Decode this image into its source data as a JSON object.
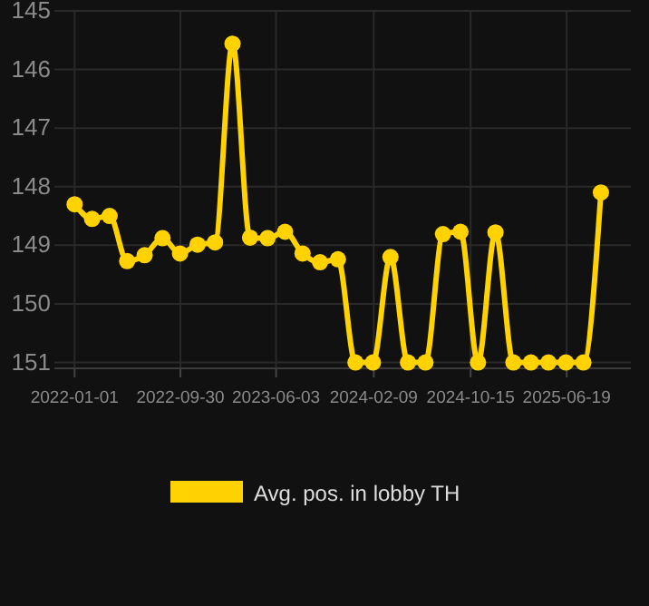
{
  "chart_data": {
    "type": "line",
    "x": [
      "2022-01-01",
      "2022-02-15",
      "2022-04-01",
      "2022-05-16",
      "2022-06-30",
      "2022-08-15",
      "2022-09-29",
      "2022-11-13",
      "2022-12-28",
      "2023-02-11",
      "2023-03-28",
      "2023-05-12",
      "2023-06-26",
      "2023-08-10",
      "2023-09-24",
      "2023-11-09",
      "2023-12-24",
      "2024-02-07",
      "2024-03-23",
      "2024-05-07",
      "2024-06-21",
      "2024-08-05",
      "2024-09-19",
      "2024-11-03",
      "2024-12-18",
      "2025-02-02",
      "2025-03-19",
      "2025-05-03",
      "2025-06-17",
      "2025-08-01",
      "2025-09-15"
    ],
    "series": [
      {
        "name": "Avg. pos. in lobby TH",
        "color": "#ffd200",
        "values": [
          148.3,
          148.55,
          148.5,
          149.27,
          149.17,
          148.88,
          149.14,
          148.99,
          148.95,
          145.56,
          148.87,
          148.88,
          148.77,
          149.14,
          149.29,
          149.24,
          151,
          151,
          149.2,
          151,
          151,
          148.81,
          148.77,
          151,
          148.78,
          151,
          151,
          151,
          151,
          151,
          148.1
        ]
      }
    ],
    "xlim": [
      "2021-11-10",
      "2025-12-01"
    ],
    "xticks": [
      "2022-01-01",
      "2022-09-30",
      "2023-06-03",
      "2024-02-09",
      "2024-10-15",
      "2025-06-19"
    ],
    "ylim": [
      151.1,
      145
    ],
    "yticks": [
      145,
      146,
      147,
      148,
      149,
      150,
      151
    ],
    "grid": true,
    "legend": "bottom",
    "marker": "circle",
    "line_style": "solid"
  }
}
